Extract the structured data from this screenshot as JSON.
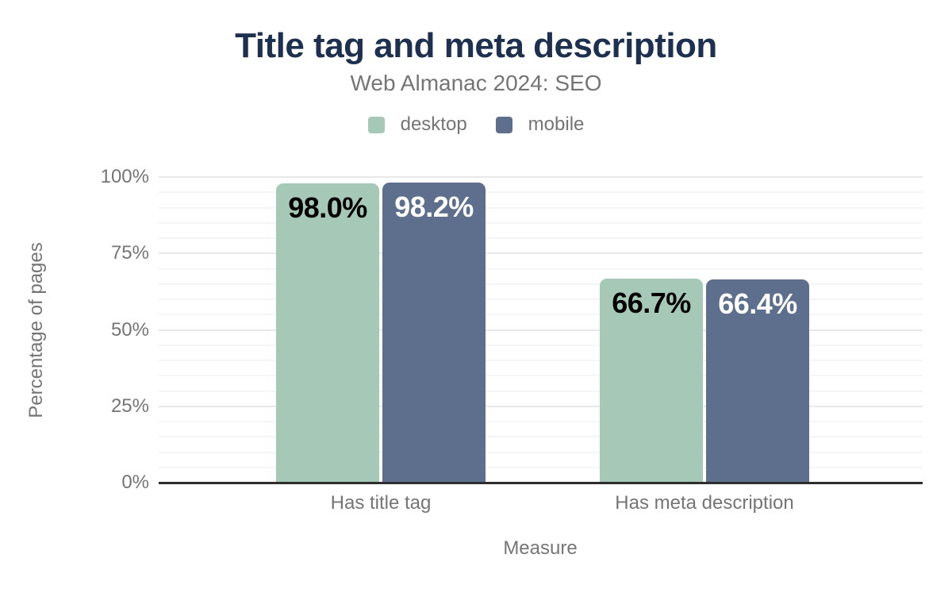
{
  "chart_data": {
    "type": "bar",
    "title": "Title tag and meta description",
    "subtitle": "Web Almanac 2024: SEO",
    "categories": [
      "Has title tag",
      "Has meta description"
    ],
    "series": [
      {
        "name": "desktop",
        "color": "#a6c9b7",
        "label_text_color": "#000000",
        "values": [
          98.0,
          66.7
        ],
        "labels": [
          "98.0%",
          "66.7%"
        ]
      },
      {
        "name": "mobile",
        "color": "#5d6f8c",
        "label_text_color": "#ffffff",
        "values": [
          98.2,
          66.4
        ],
        "labels": [
          "98.2%",
          "66.4%"
        ]
      }
    ],
    "xlabel": "Measure",
    "ylabel": "Percentage of pages",
    "ylim": [
      0,
      100
    ],
    "y_ticks": [
      {
        "label": "0%",
        "value": 0
      },
      {
        "label": "25%",
        "value": 25
      },
      {
        "label": "50%",
        "value": 50
      },
      {
        "label": "75%",
        "value": 75
      },
      {
        "label": "100%",
        "value": 100
      }
    ],
    "grid": {
      "show": true,
      "major_step": 25,
      "minor_step": 5
    },
    "legend_position": "top"
  },
  "colors": {
    "title": "#1e3050",
    "text_muted": "#757575",
    "axis_line": "#2e2e2e",
    "grid_major": "#e9e9e9",
    "grid_minor": "#f5f5f5",
    "background": "#ffffff"
  }
}
